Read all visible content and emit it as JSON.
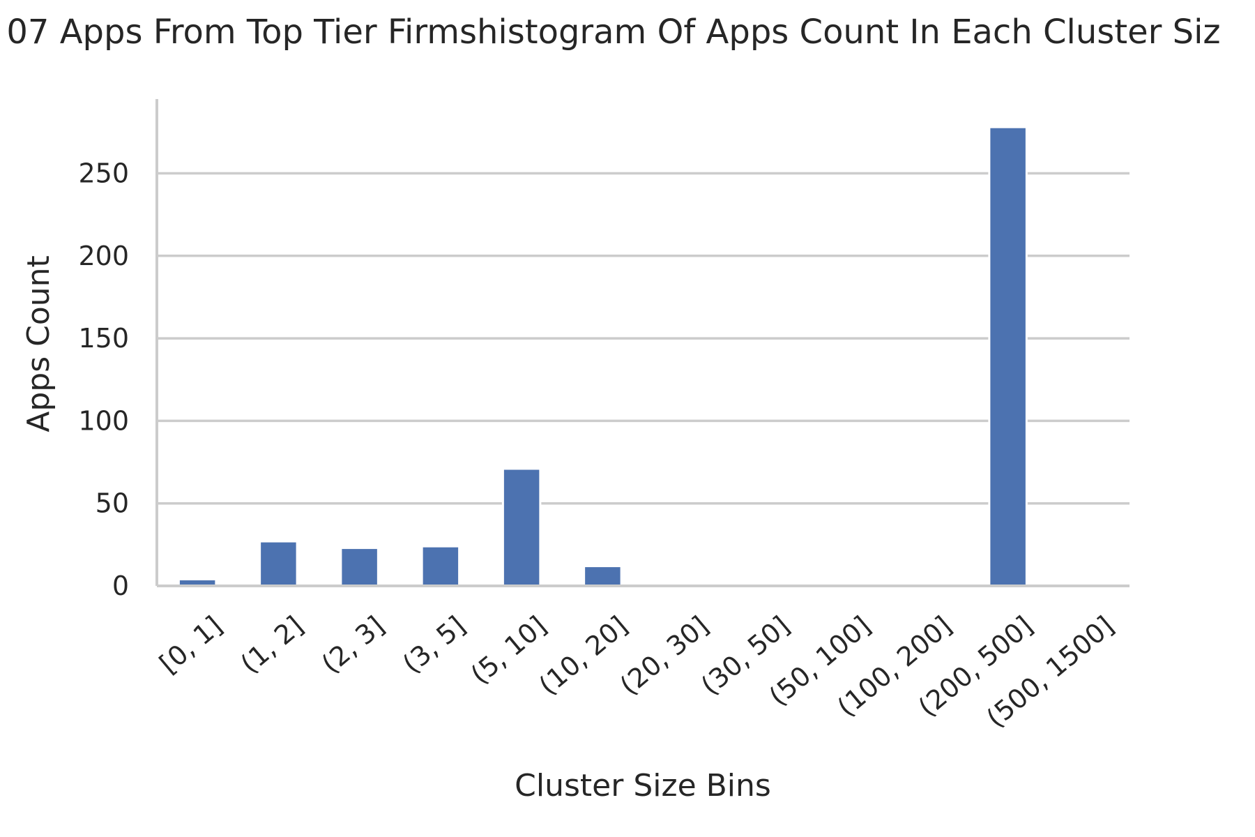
{
  "chart_data": {
    "type": "bar",
    "title": "07 Apps From Top Tier Firmshistogram Of Apps Count In Each Cluster Siz",
    "xlabel": "Cluster Size Bins",
    "ylabel": "Apps Count",
    "categories": [
      "[0, 1]",
      "(1, 2]",
      "(2, 3]",
      "(3, 5]",
      "(5, 10]",
      "(10, 20]",
      "(20, 30]",
      "(30, 50]",
      "(50, 100]",
      "(100, 200]",
      "(200, 500]",
      "(500, 1500]"
    ],
    "values": [
      4,
      27,
      23,
      24,
      71,
      12,
      0,
      0,
      0,
      0,
      278,
      0
    ],
    "ylim": [
      0,
      295
    ],
    "yticks": [
      0,
      50,
      100,
      150,
      200,
      250
    ],
    "grid": true,
    "bar_color": "#4c72b0",
    "grid_color": "#cccccc",
    "axis_color": "#cccccc"
  }
}
